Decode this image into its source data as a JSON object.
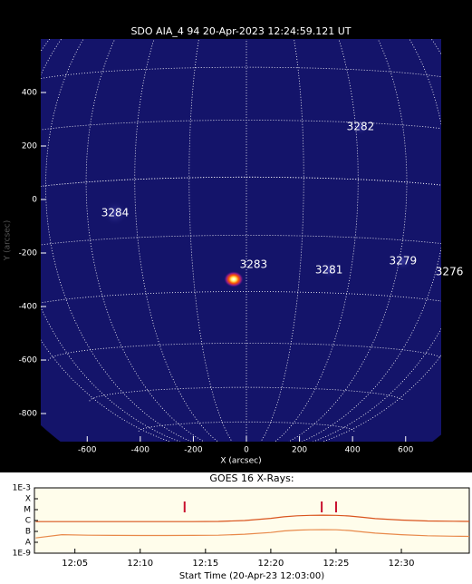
{
  "chart_data": [
    {
      "type": "image",
      "title": "SDO AIA_4 94 20-Apr-2023 12:24:59.121 UT",
      "x_label": "X (arcsec)",
      "y_label": "Y (arcsec)",
      "xlim": [
        -775,
        734
      ],
      "ylim": [
        -905,
        600
      ],
      "xticks": [
        -600,
        -400,
        -200,
        0,
        200,
        400,
        600
      ],
      "yticks": [
        -800,
        -600,
        -400,
        -200,
        0,
        200,
        400
      ],
      "regions": [
        {
          "label": "3282",
          "x": 430,
          "y": 271
        },
        {
          "label": "3284",
          "x": -495,
          "y": -51
        },
        {
          "label": "3283",
          "x": 27,
          "y": -244
        },
        {
          "label": "3281",
          "x": 311,
          "y": -264
        },
        {
          "label": "3279",
          "x": 590,
          "y": -231
        },
        {
          "label": "3276",
          "x": 765,
          "y": -271
        }
      ]
    },
    {
      "type": "line",
      "title": "GOES 16 X-Rays:",
      "x_label": "Start Time (20-Apr-23 12:03:00)",
      "log": true,
      "xlim": [
        1.9,
        35.2
      ],
      "ylim": [
        1e-09,
        0.001
      ],
      "xticks": [
        {
          "value": 5,
          "label": "12:05"
        },
        {
          "value": 10,
          "label": "12:10"
        },
        {
          "value": 15,
          "label": "12:15"
        },
        {
          "value": 20,
          "label": "12:20"
        },
        {
          "value": 25,
          "label": "12:25"
        },
        {
          "value": 30,
          "label": "12:30"
        }
      ],
      "yticks": [
        {
          "value": 1e-09,
          "label": "1E-9"
        },
        {
          "value": 1e-08,
          "label": "A"
        },
        {
          "value": 1e-07,
          "label": "B"
        },
        {
          "value": 1e-06,
          "label": "C"
        },
        {
          "value": 1e-05,
          "label": "M"
        },
        {
          "value": 0.0001,
          "label": "X"
        },
        {
          "value": 0.001,
          "label": "1E-3"
        }
      ],
      "x": [
        2,
        4,
        6,
        8,
        10,
        12,
        14,
        16,
        18,
        20,
        21,
        22,
        23,
        24,
        25,
        26,
        27,
        28,
        30,
        32,
        34,
        35.2
      ],
      "series": [
        {
          "color": "#d9541e",
          "values": [
            8e-07,
            8e-07,
            8e-07,
            8e-07,
            8e-07,
            8e-07,
            8e-07,
            8.2e-07,
            1e-06,
            1.6e-06,
            2.2e-06,
            2.7e-06,
            3e-06,
            3.1e-06,
            3e-06,
            2.6e-06,
            2e-06,
            1.5e-06,
            1.1e-06,
            9e-07,
            8.5e-07,
            8.3e-07
          ]
        },
        {
          "color": "#e8894a",
          "values": [
            2.5e-08,
            5e-08,
            4.5e-08,
            4.3e-08,
            4.2e-08,
            4.2e-08,
            4.3e-08,
            4.5e-08,
            5.5e-08,
            8e-08,
            1.1e-07,
            1.3e-07,
            1.4e-07,
            1.45e-07,
            1.4e-07,
            1.2e-07,
            9e-08,
            7e-08,
            5e-08,
            4e-08,
            3.6e-08,
            3.5e-08
          ]
        }
      ],
      "events": [
        13.4,
        23.9,
        25.0
      ],
      "event_color": "#c8102e",
      "grid": false
    }
  ]
}
